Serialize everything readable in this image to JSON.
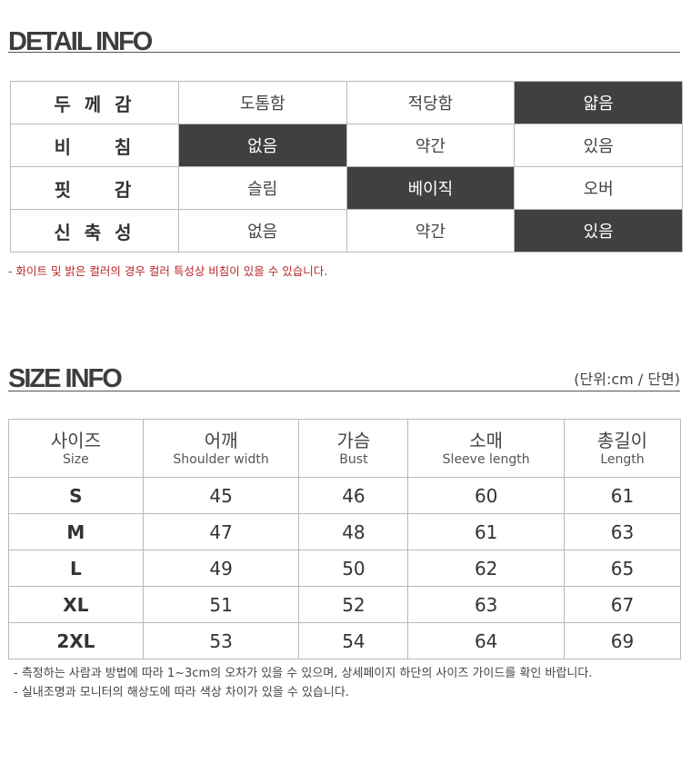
{
  "detail": {
    "title": "DETAIL INFO",
    "rows": [
      {
        "label": "두 께 감",
        "options": [
          "도톰함",
          "적당함",
          "얇음"
        ],
        "selected": 2
      },
      {
        "label": "비    침",
        "options": [
          "없음",
          "약간",
          "있음"
        ],
        "selected": 0
      },
      {
        "label": "핏    감",
        "options": [
          "슬림",
          "베이직",
          "오버"
        ],
        "selected": 1
      },
      {
        "label": "신 축 성",
        "options": [
          "없음",
          "약간",
          "있음"
        ],
        "selected": 2
      }
    ],
    "note": "- 화이트 및 밝은 컬러의 경우 컬러 특성상 비침이 있을 수 있습니다."
  },
  "size": {
    "title": "SIZE INFO",
    "unit": "(단위:cm / 단면)",
    "headers": [
      {
        "ko": "사이즈",
        "en": "Size"
      },
      {
        "ko": "어깨",
        "en": "Shoulder width"
      },
      {
        "ko": "가슴",
        "en": "Bust"
      },
      {
        "ko": "소매",
        "en": "Sleeve length"
      },
      {
        "ko": "총길이",
        "en": "Length"
      }
    ],
    "rows": [
      [
        "S",
        "45",
        "46",
        "60",
        "61"
      ],
      [
        "M",
        "47",
        "48",
        "61",
        "63"
      ],
      [
        "L",
        "49",
        "50",
        "62",
        "65"
      ],
      [
        "XL",
        "51",
        "52",
        "63",
        "67"
      ],
      [
        "2XL",
        "53",
        "54",
        "64",
        "69"
      ]
    ],
    "notes": [
      "- 측정하는 사람과 방법에 따라 1~3cm의 오차가 있을 수 있으며, 상세페이지 하단의 사이즈 가이드를 확인 바랍니다.",
      "- 실내조명과 모니터의 해상도에 따라 색상 차이가 있을 수 있습니다."
    ]
  }
}
